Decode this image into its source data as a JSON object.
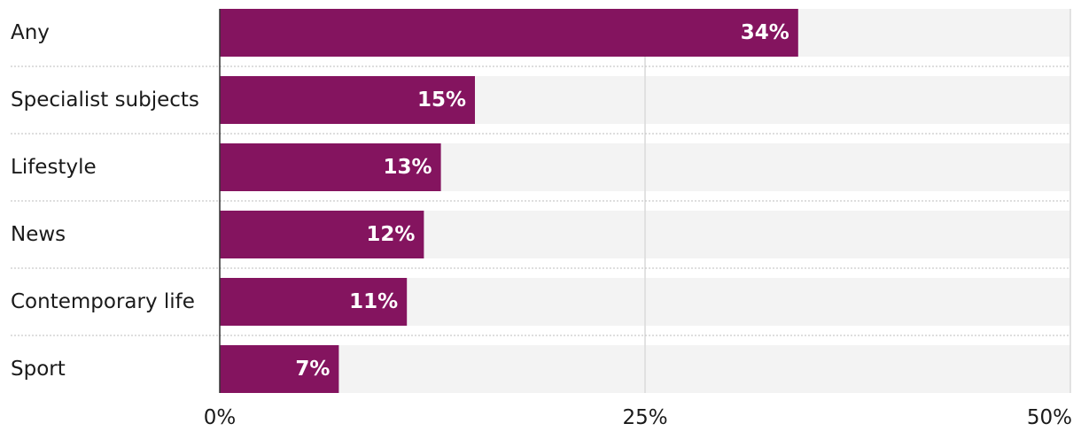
{
  "chart_data": {
    "type": "bar",
    "orientation": "horizontal",
    "categories": [
      "Any",
      "Specialist subjects",
      "Lifestyle",
      "News",
      "Contemporary life",
      "Sport"
    ],
    "values": [
      34,
      15,
      13,
      12,
      11,
      7
    ],
    "value_labels": [
      "34%",
      "15%",
      "13%",
      "12%",
      "11%",
      "7%"
    ],
    "xlim": [
      0,
      50
    ],
    "xticks": [
      0,
      25,
      50
    ],
    "xtick_labels": [
      "0%",
      "25%",
      "50%"
    ],
    "title": "",
    "xlabel": "",
    "ylabel": "",
    "grid": true,
    "colors": {
      "bar": "#84145f",
      "track": "#f3f3f3",
      "gridline": "#d9d9d9",
      "separator": "#bdbdbd",
      "axis": "#333333"
    }
  }
}
